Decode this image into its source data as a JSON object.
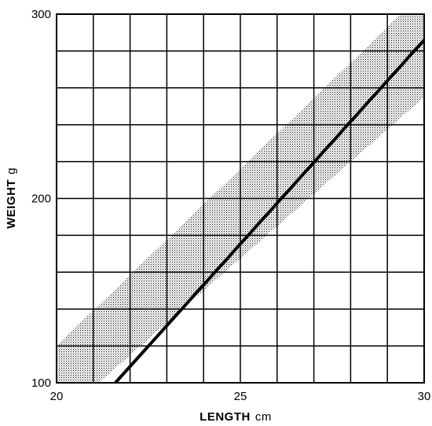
{
  "chart_data": {
    "type": "line",
    "title": "",
    "xlabel": "LENGTH",
    "xunit": "cm",
    "ylabel": "WEIGHT",
    "yunit": "g",
    "xlim": [
      20,
      30
    ],
    "ylim": [
      100,
      300
    ],
    "xticks": [
      20,
      25,
      30
    ],
    "yticks": [
      100,
      200,
      300
    ],
    "grid": true,
    "grid_x_step": 1,
    "grid_y_step": 20,
    "series": [
      {
        "style": "solid-thick",
        "x": [
          21.6,
          30
        ],
        "y": [
          100,
          286
        ]
      }
    ],
    "band": {
      "style": "stippled",
      "x": [
        20,
        30
      ],
      "upper": [
        120,
        312
      ],
      "lower": [
        80,
        255
      ]
    }
  }
}
